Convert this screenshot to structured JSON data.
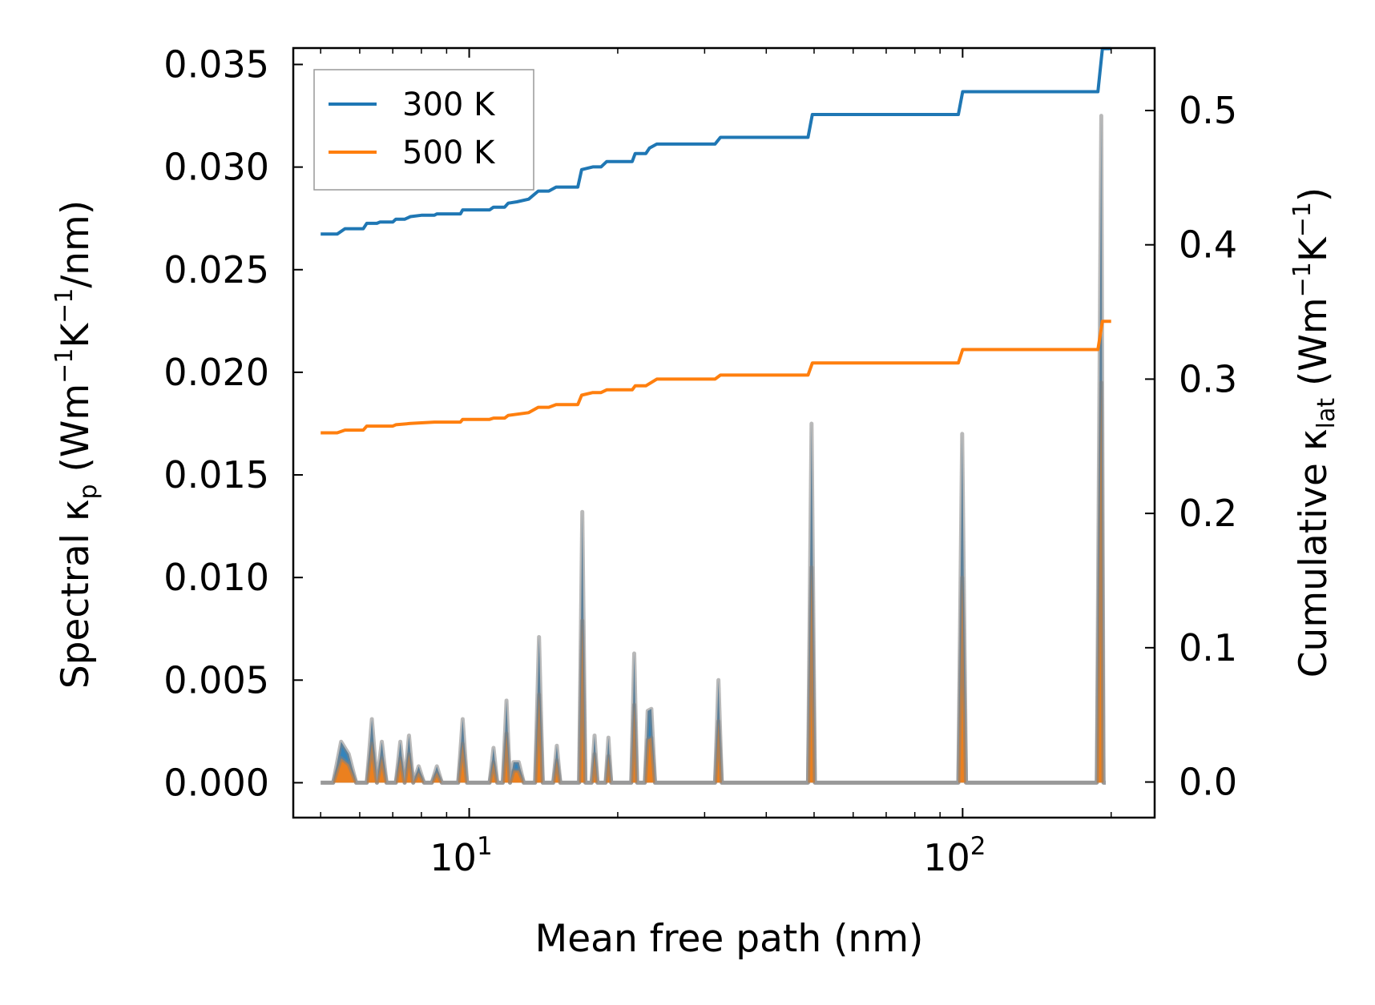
{
  "chart_data": {
    "type": "line",
    "xlabel": "Mean free path (nm)",
    "xscale": "log",
    "xlim": [
      4.4,
      245
    ],
    "ylabel_left": {
      "main": "Spectral κ",
      "sub": "p",
      "unit_open": " (Wm",
      "exp1": "−1",
      "k": "K",
      "exp2": "−1",
      "unit_close": "/nm)"
    },
    "ylabel_right": {
      "main": "Cumulative κ",
      "sub": "lat",
      "unit_open": " (Wm",
      "exp1": "−1",
      "k": "K",
      "exp2": "−1",
      "unit_close": ")"
    },
    "ylim_left": [
      -0.0017,
      0.0358
    ],
    "ylim_right": [
      -0.0265,
      0.5465
    ],
    "x_ticks": [
      {
        "value": 10,
        "base": "10",
        "exp": "1"
      },
      {
        "value": 100,
        "base": "10",
        "exp": "2"
      }
    ],
    "x_minor_ticks": [
      5,
      6,
      7,
      8,
      9,
      20,
      30,
      40,
      50,
      60,
      70,
      80,
      90,
      200
    ],
    "y_left_ticks": [
      "0.000",
      "0.005",
      "0.010",
      "0.015",
      "0.020",
      "0.025",
      "0.030",
      "0.035"
    ],
    "y_right_ticks": [
      "0.0",
      "0.1",
      "0.2",
      "0.3",
      "0.4",
      "0.5"
    ],
    "legend": {
      "position": "upper-left",
      "entries": [
        "300 K",
        "500 K"
      ]
    },
    "colors": {
      "300 K": "#1f77b4",
      "500 K": "#ff7f0e",
      "fill": "#7f7f7f"
    },
    "series": [
      {
        "name": "300 K",
        "axis": "right",
        "kind": "cumulative",
        "points": [
          [
            5.0,
            0.408
          ],
          [
            5.4,
            0.408
          ],
          [
            5.6,
            0.412
          ],
          [
            6.1,
            0.412
          ],
          [
            6.2,
            0.416
          ],
          [
            6.5,
            0.416
          ],
          [
            6.6,
            0.417
          ],
          [
            7.0,
            0.417
          ],
          [
            7.1,
            0.419
          ],
          [
            7.4,
            0.419
          ],
          [
            7.6,
            0.421
          ],
          [
            8.0,
            0.422
          ],
          [
            8.5,
            0.422
          ],
          [
            8.6,
            0.423
          ],
          [
            9.6,
            0.423
          ],
          [
            9.7,
            0.426
          ],
          [
            11.0,
            0.426
          ],
          [
            11.2,
            0.428
          ],
          [
            11.8,
            0.428
          ],
          [
            12.0,
            0.431
          ],
          [
            12.5,
            0.432
          ],
          [
            13.2,
            0.434
          ],
          [
            13.8,
            0.44
          ],
          [
            14.5,
            0.44
          ],
          [
            15.0,
            0.443
          ],
          [
            16.6,
            0.443
          ],
          [
            16.9,
            0.456
          ],
          [
            17.8,
            0.458
          ],
          [
            18.5,
            0.458
          ],
          [
            19.0,
            0.462
          ],
          [
            21.4,
            0.462
          ],
          [
            21.7,
            0.468
          ],
          [
            22.8,
            0.468
          ],
          [
            23.2,
            0.472
          ],
          [
            24.0,
            0.475
          ],
          [
            31.5,
            0.475
          ],
          [
            32.3,
            0.48
          ],
          [
            48.6,
            0.48
          ],
          [
            49.6,
            0.497
          ],
          [
            98.0,
            0.497
          ],
          [
            100.0,
            0.514
          ],
          [
            188.0,
            0.514
          ],
          [
            192.0,
            0.546
          ],
          [
            200.0,
            0.546
          ]
        ]
      },
      {
        "name": "500 K",
        "axis": "right",
        "kind": "cumulative",
        "points": [
          [
            5.0,
            0.26
          ],
          [
            5.4,
            0.26
          ],
          [
            5.6,
            0.262
          ],
          [
            6.1,
            0.262
          ],
          [
            6.2,
            0.265
          ],
          [
            7.0,
            0.265
          ],
          [
            7.1,
            0.266
          ],
          [
            7.6,
            0.267
          ],
          [
            8.5,
            0.268
          ],
          [
            9.6,
            0.268
          ],
          [
            9.7,
            0.27
          ],
          [
            11.0,
            0.27
          ],
          [
            11.2,
            0.271
          ],
          [
            11.8,
            0.271
          ],
          [
            12.0,
            0.273
          ],
          [
            13.2,
            0.275
          ],
          [
            13.8,
            0.279
          ],
          [
            14.5,
            0.279
          ],
          [
            15.0,
            0.281
          ],
          [
            16.6,
            0.281
          ],
          [
            16.9,
            0.288
          ],
          [
            17.8,
            0.29
          ],
          [
            18.5,
            0.29
          ],
          [
            19.0,
            0.292
          ],
          [
            21.4,
            0.292
          ],
          [
            21.7,
            0.295
          ],
          [
            22.8,
            0.295
          ],
          [
            24.0,
            0.3
          ],
          [
            31.5,
            0.3
          ],
          [
            32.3,
            0.303
          ],
          [
            48.6,
            0.303
          ],
          [
            49.6,
            0.312
          ],
          [
            98.0,
            0.312
          ],
          [
            100.0,
            0.322
          ],
          [
            188.0,
            0.322
          ],
          [
            192.0,
            0.343
          ],
          [
            200.0,
            0.343
          ]
        ]
      },
      {
        "name": "300 K spectral",
        "axis": "left",
        "kind": "spectral",
        "points": [
          [
            5.0,
            0.0
          ],
          [
            5.3,
            0.0
          ],
          [
            5.5,
            0.002
          ],
          [
            5.7,
            0.0014
          ],
          [
            5.9,
            0.0
          ],
          [
            6.2,
            0.0
          ],
          [
            6.35,
            0.0031
          ],
          [
            6.5,
            0.0
          ],
          [
            6.65,
            0.002
          ],
          [
            6.8,
            0.0
          ],
          [
            7.1,
            0.0
          ],
          [
            7.25,
            0.002
          ],
          [
            7.4,
            0.0
          ],
          [
            7.55,
            0.0023
          ],
          [
            7.7,
            0.0
          ],
          [
            7.9,
            0.0008
          ],
          [
            8.1,
            0.0
          ],
          [
            8.4,
            0.0
          ],
          [
            8.6,
            0.0008
          ],
          [
            8.8,
            0.0
          ],
          [
            9.5,
            0.0
          ],
          [
            9.7,
            0.0031
          ],
          [
            9.9,
            0.0
          ],
          [
            11.0,
            0.0
          ],
          [
            11.2,
            0.0017
          ],
          [
            11.4,
            0.0
          ],
          [
            11.7,
            0.0
          ],
          [
            11.9,
            0.004
          ],
          [
            12.1,
            0.0
          ],
          [
            12.3,
            0.001
          ],
          [
            12.6,
            0.001
          ],
          [
            12.9,
            0.0
          ],
          [
            13.6,
            0.0
          ],
          [
            13.85,
            0.0071
          ],
          [
            14.1,
            0.0
          ],
          [
            14.8,
            0.0
          ],
          [
            15.05,
            0.0018
          ],
          [
            15.3,
            0.0
          ],
          [
            16.7,
            0.0
          ],
          [
            16.95,
            0.0132
          ],
          [
            17.2,
            0.0
          ],
          [
            17.7,
            0.0
          ],
          [
            17.95,
            0.0023
          ],
          [
            18.2,
            0.0
          ],
          [
            18.9,
            0.0
          ],
          [
            19.15,
            0.0022
          ],
          [
            19.4,
            0.0
          ],
          [
            21.3,
            0.0
          ],
          [
            21.6,
            0.0063
          ],
          [
            21.9,
            0.0
          ],
          [
            22.7,
            0.0
          ],
          [
            23.0,
            0.0035
          ],
          [
            23.4,
            0.0036
          ],
          [
            23.8,
            0.0
          ],
          [
            31.5,
            0.0
          ],
          [
            32.0,
            0.005
          ],
          [
            32.5,
            0.0
          ],
          [
            48.6,
            0.0
          ],
          [
            49.4,
            0.0175
          ],
          [
            50.2,
            0.0
          ],
          [
            98.0,
            0.0
          ],
          [
            99.8,
            0.017
          ],
          [
            101.6,
            0.0
          ],
          [
            187.0,
            0.0
          ],
          [
            191.0,
            0.0325
          ],
          [
            193.0,
            0.0
          ],
          [
            195.0,
            0.0
          ]
        ]
      },
      {
        "name": "500 K spectral",
        "axis": "left",
        "kind": "spectral",
        "points": [
          [
            5.0,
            0.0
          ],
          [
            5.3,
            0.0
          ],
          [
            5.5,
            0.0012
          ],
          [
            5.7,
            0.0009
          ],
          [
            5.9,
            0.0
          ],
          [
            6.2,
            0.0
          ],
          [
            6.35,
            0.0019
          ],
          [
            6.5,
            0.0
          ],
          [
            6.65,
            0.0012
          ],
          [
            6.8,
            0.0
          ],
          [
            7.1,
            0.0
          ],
          [
            7.25,
            0.0012
          ],
          [
            7.4,
            0.0
          ],
          [
            7.55,
            0.0014
          ],
          [
            7.7,
            0.0
          ],
          [
            7.9,
            0.0005
          ],
          [
            8.1,
            0.0
          ],
          [
            8.4,
            0.0
          ],
          [
            8.6,
            0.0005
          ],
          [
            8.8,
            0.0
          ],
          [
            9.5,
            0.0
          ],
          [
            9.7,
            0.0019
          ],
          [
            9.9,
            0.0
          ],
          [
            11.0,
            0.0
          ],
          [
            11.2,
            0.001
          ],
          [
            11.4,
            0.0
          ],
          [
            11.7,
            0.0
          ],
          [
            11.9,
            0.0024
          ],
          [
            12.1,
            0.0
          ],
          [
            12.3,
            0.0006
          ],
          [
            12.6,
            0.0006
          ],
          [
            12.9,
            0.0
          ],
          [
            13.6,
            0.0
          ],
          [
            13.85,
            0.0043
          ],
          [
            14.1,
            0.0
          ],
          [
            14.8,
            0.0
          ],
          [
            15.05,
            0.0011
          ],
          [
            15.3,
            0.0
          ],
          [
            16.7,
            0.0
          ],
          [
            16.95,
            0.0079
          ],
          [
            17.2,
            0.0
          ],
          [
            17.7,
            0.0
          ],
          [
            17.95,
            0.0014
          ],
          [
            18.2,
            0.0
          ],
          [
            18.9,
            0.0
          ],
          [
            19.15,
            0.0013
          ],
          [
            19.4,
            0.0
          ],
          [
            21.3,
            0.0
          ],
          [
            21.6,
            0.0038
          ],
          [
            21.9,
            0.0
          ],
          [
            22.7,
            0.0
          ],
          [
            23.0,
            0.0021
          ],
          [
            23.4,
            0.0022
          ],
          [
            23.8,
            0.0
          ],
          [
            31.5,
            0.0
          ],
          [
            32.0,
            0.003
          ],
          [
            32.5,
            0.0
          ],
          [
            48.6,
            0.0
          ],
          [
            49.4,
            0.0105
          ],
          [
            50.2,
            0.0
          ],
          [
            98.0,
            0.0
          ],
          [
            99.8,
            0.01
          ],
          [
            101.6,
            0.0
          ],
          [
            187.0,
            0.0
          ],
          [
            191.0,
            0.0195
          ],
          [
            193.0,
            0.0
          ],
          [
            195.0,
            0.0
          ]
        ]
      }
    ]
  }
}
